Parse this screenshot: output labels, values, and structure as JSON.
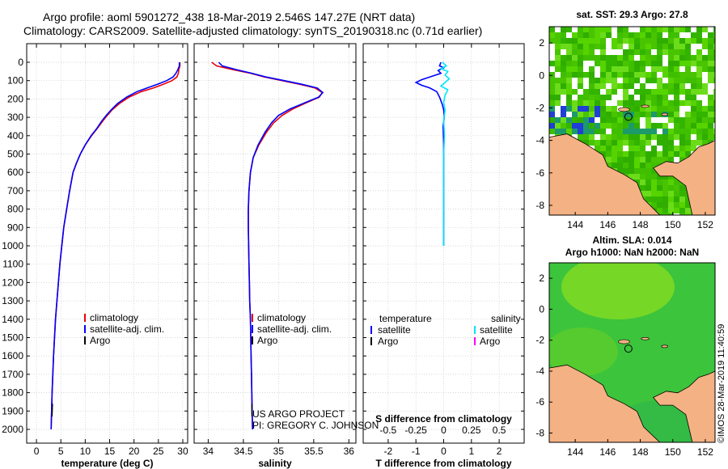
{
  "figure": {
    "title_line1": "Argo profile: aoml 5901272_438 18-Mar-2019 2.546S 147.27E (NRT data)",
    "title_line2": "Climatology: CARS2009. Satellite-adjusted climatology: synTS_20190318.nc (0.71d earlier)",
    "credit_line1": "US ARGO PROJECT",
    "credit_line2": "PI: GREGORY C. JOHNSON",
    "watermark": "©IMOS 28-Mar-2019 11:40:59"
  },
  "colors": {
    "climatology": "#e8000b",
    "satellite_adj": "#0000ff",
    "argo": "#000000",
    "sal_satellite": "#00e5ff",
    "sal_argo": "#ff00ff",
    "land": "#f4b183",
    "sst_green": "#44c800"
  },
  "chart_data": [
    {
      "type": "line",
      "name": "temperature_profile",
      "xlabel": "temperature (deg C)",
      "ylabel": "",
      "xlim": [
        -2,
        31
      ],
      "ylim": [
        2050,
        0
      ],
      "xticks": [
        0,
        5,
        10,
        15,
        20,
        25,
        30
      ],
      "yticks": [
        0,
        100,
        200,
        300,
        400,
        500,
        600,
        700,
        800,
        900,
        1000,
        1100,
        1200,
        1300,
        1400,
        1500,
        1600,
        1700,
        1800,
        1900,
        2000
      ],
      "legend": [
        "climatology",
        "satellite-adj. clim.",
        "Argo"
      ],
      "legend_position": "lower-center",
      "series": [
        {
          "name": "climatology",
          "color_key": "climatology",
          "points": [
            [
              29.4,
              0
            ],
            [
              29.4,
              20
            ],
            [
              29.2,
              40
            ],
            [
              29.1,
              60
            ],
            [
              28.8,
              80
            ],
            [
              27.8,
              100
            ],
            [
              26,
              120
            ],
            [
              24,
              140
            ],
            [
              21.5,
              160
            ],
            [
              19,
              190
            ],
            [
              17,
              225
            ],
            [
              15.5,
              260
            ],
            [
              14.5,
              290
            ],
            [
              13.6,
              320
            ],
            [
              12.5,
              360
            ],
            [
              11.3,
              400
            ],
            [
              10,
              450
            ],
            [
              9,
              500
            ],
            [
              8.2,
              550
            ],
            [
              7.5,
              600
            ],
            [
              6.8,
              700
            ],
            [
              6.2,
              800
            ],
            [
              5.6,
              900
            ],
            [
              5.2,
              1000
            ],
            [
              4.8,
              1100
            ],
            [
              4.5,
              1200
            ],
            [
              4.2,
              1300
            ],
            [
              3.9,
              1400
            ],
            [
              3.7,
              1500
            ],
            [
              3.5,
              1600
            ],
            [
              3.35,
              1700
            ],
            [
              3.2,
              1800
            ],
            [
              3.1,
              1900
            ],
            [
              3,
              2000
            ]
          ]
        },
        {
          "name": "satellite-adj. clim.",
          "color_key": "satellite_adj",
          "points": [
            [
              29.3,
              0
            ],
            [
              29.3,
              20
            ],
            [
              29,
              40
            ],
            [
              28.6,
              60
            ],
            [
              28,
              80
            ],
            [
              26.7,
              100
            ],
            [
              24.8,
              120
            ],
            [
              22.7,
              140
            ],
            [
              20.6,
              160
            ],
            [
              18.5,
              190
            ],
            [
              16.6,
              225
            ],
            [
              15.3,
              260
            ],
            [
              14.3,
              290
            ],
            [
              13.4,
              320
            ],
            [
              12.4,
              360
            ],
            [
              11.2,
              400
            ],
            [
              10,
              450
            ],
            [
              9,
              500
            ],
            [
              8.2,
              550
            ],
            [
              7.5,
              600
            ],
            [
              6.8,
              700
            ],
            [
              6.2,
              800
            ],
            [
              5.6,
              900
            ],
            [
              5.2,
              1000
            ],
            [
              4.8,
              1100
            ],
            [
              4.5,
              1200
            ],
            [
              4.2,
              1300
            ],
            [
              3.9,
              1400
            ],
            [
              3.7,
              1500
            ],
            [
              3.5,
              1600
            ],
            [
              3.35,
              1700
            ],
            [
              3.2,
              1800
            ],
            [
              3.1,
              1900
            ],
            [
              3,
              2000
            ]
          ]
        },
        {
          "name": "Argo",
          "color_key": "argo",
          "points": [
            [
              3.3,
              1860
            ],
            [
              3.2,
              1930
            ]
          ]
        }
      ]
    },
    {
      "type": "line",
      "name": "salinity_profile",
      "xlabel": "salinity",
      "xlim": [
        33.8,
        36.1
      ],
      "ylim": [
        2050,
        0
      ],
      "xticks": [
        34,
        34.5,
        35,
        35.5,
        36
      ],
      "legend": [
        "climatology",
        "satellite-adj. clim.",
        "Argo"
      ],
      "legend_position": "lower-center",
      "series": [
        {
          "name": "climatology",
          "color_key": "climatology",
          "points": [
            [
              34.05,
              0
            ],
            [
              34.12,
              20
            ],
            [
              34.35,
              40
            ],
            [
              34.6,
              60
            ],
            [
              34.8,
              80
            ],
            [
              35.05,
              100
            ],
            [
              35.3,
              120
            ],
            [
              35.52,
              140
            ],
            [
              35.62,
              165
            ],
            [
              35.58,
              190
            ],
            [
              35.4,
              220
            ],
            [
              35.2,
              255
            ],
            [
              35.05,
              290
            ],
            [
              34.93,
              330
            ],
            [
              34.83,
              380
            ],
            [
              34.72,
              450
            ],
            [
              34.64,
              520
            ],
            [
              34.6,
              600
            ],
            [
              34.58,
              700
            ],
            [
              34.57,
              800
            ],
            [
              34.57,
              900
            ],
            [
              34.575,
              1000
            ],
            [
              34.58,
              1100
            ],
            [
              34.585,
              1200
            ],
            [
              34.59,
              1300
            ],
            [
              34.6,
              1400
            ],
            [
              34.605,
              1500
            ],
            [
              34.61,
              1600
            ],
            [
              34.615,
              1700
            ],
            [
              34.62,
              1800
            ],
            [
              34.625,
              1900
            ],
            [
              34.63,
              2000
            ]
          ]
        },
        {
          "name": "satellite-adj. clim.",
          "color_key": "satellite_adj",
          "points": [
            [
              34.15,
              0
            ],
            [
              34.2,
              20
            ],
            [
              34.4,
              40
            ],
            [
              34.62,
              60
            ],
            [
              34.82,
              80
            ],
            [
              35.08,
              100
            ],
            [
              35.33,
              120
            ],
            [
              35.55,
              140
            ],
            [
              35.63,
              165
            ],
            [
              35.57,
              190
            ],
            [
              35.38,
              220
            ],
            [
              35.16,
              255
            ],
            [
              35,
              290
            ],
            [
              34.9,
              330
            ],
            [
              34.81,
              380
            ],
            [
              34.71,
              450
            ],
            [
              34.64,
              520
            ],
            [
              34.6,
              600
            ],
            [
              34.58,
              700
            ],
            [
              34.57,
              800
            ],
            [
              34.57,
              900
            ],
            [
              34.575,
              1000
            ],
            [
              34.58,
              1100
            ],
            [
              34.585,
              1200
            ],
            [
              34.59,
              1300
            ],
            [
              34.6,
              1400
            ],
            [
              34.605,
              1500
            ],
            [
              34.61,
              1600
            ],
            [
              34.615,
              1700
            ],
            [
              34.62,
              1800
            ],
            [
              34.625,
              1900
            ],
            [
              34.63,
              2000
            ]
          ]
        },
        {
          "name": "Argo",
          "color_key": "argo",
          "points": [
            [
              34.62,
              1860
            ],
            [
              34.62,
              1930
            ]
          ]
        }
      ]
    },
    {
      "type": "line",
      "name": "difference_profile",
      "xlabel": "T difference from climatology",
      "xlabel_top": "S difference from climatology",
      "xlim": [
        -2.9,
        2.9
      ],
      "ylim": [
        2050,
        0
      ],
      "xticks": [
        -2,
        -1,
        0,
        1,
        2
      ],
      "top_ticks": [
        "-0.5",
        "-0.25",
        "0",
        "0.25",
        "0.5"
      ],
      "legend_left_title": "temperature",
      "legend_right_title": "salinity",
      "legend_left": [
        "satellite",
        "Argo"
      ],
      "legend_right": [
        "satellite",
        "Argo"
      ],
      "series": [
        {
          "name": "temperature satellite",
          "color_key": "satellite_adj",
          "points": [
            [
              -0.1,
              0
            ],
            [
              -0.15,
              20
            ],
            [
              0,
              30
            ],
            [
              -0.2,
              45
            ],
            [
              -0.1,
              60
            ],
            [
              -0.5,
              80
            ],
            [
              -0.8,
              95
            ],
            [
              -1,
              110
            ],
            [
              -0.8,
              125
            ],
            [
              -0.5,
              140
            ],
            [
              -0.25,
              160
            ],
            [
              -0.15,
              190
            ],
            [
              -0.05,
              230
            ],
            [
              0,
              260
            ],
            [
              0.02,
              300
            ],
            [
              -0.02,
              350
            ],
            [
              0,
              450
            ],
            [
              0,
              600
            ],
            [
              0,
              800
            ],
            [
              0,
              1000
            ]
          ]
        },
        {
          "name": "salinity satellite",
          "color_key": "sal_satellite",
          "points": [
            [
              -0.05,
              0
            ],
            [
              0.1,
              20
            ],
            [
              -0.1,
              35
            ],
            [
              0.15,
              50
            ],
            [
              0.05,
              70
            ],
            [
              0.2,
              90
            ],
            [
              0.05,
              110
            ],
            [
              -0.1,
              130
            ],
            [
              0.15,
              150
            ],
            [
              0.05,
              180
            ],
            [
              0,
              220
            ],
            [
              0.05,
              260
            ],
            [
              0,
              320
            ],
            [
              0.03,
              400
            ],
            [
              0,
              500
            ],
            [
              0,
              700
            ],
            [
              0,
              900
            ],
            [
              0,
              1000
            ]
          ]
        }
      ]
    }
  ],
  "maps": [
    {
      "name": "sst_map",
      "title": "sat. SST: 29.3 Argo: 27.8",
      "subtitle": "",
      "xticks": [
        "144",
        "146",
        "148",
        "150",
        "152"
      ],
      "yticks": [
        "2",
        "0",
        "-2",
        "-4",
        "-6",
        "-8"
      ]
    },
    {
      "name": "sla_map",
      "title": "Altim. SLA: 0.014",
      "subtitle": "Argo h1000: NaN h2000: NaN",
      "xticks": [
        "144",
        "146",
        "148",
        "150",
        "152"
      ],
      "yticks": [
        "2",
        "0",
        "-2",
        "-4",
        "-6",
        "-8"
      ]
    }
  ]
}
